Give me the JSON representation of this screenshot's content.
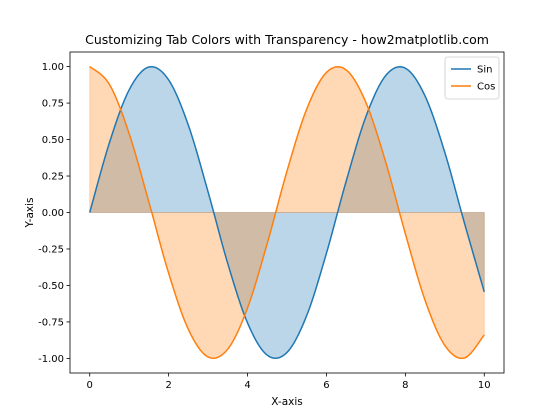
{
  "chart_data": {
    "type": "line",
    "title": "Customizing Tab Colors with Transparency - how2matplotlib.com",
    "xlabel": "X-axis",
    "ylabel": "Y-axis",
    "xlim": [
      -0.5,
      10.5
    ],
    "ylim": [
      -1.1,
      1.1
    ],
    "xticks": [
      0,
      2,
      4,
      6,
      8,
      10
    ],
    "xtick_labels": [
      "0",
      "2",
      "4",
      "6",
      "8",
      "10"
    ],
    "yticks": [
      -1.0,
      -0.75,
      -0.5,
      -0.25,
      0.0,
      0.25,
      0.5,
      0.75,
      1.0
    ],
    "ytick_labels": [
      "-1.00",
      "-0.75",
      "-0.50",
      "-0.25",
      "0.00",
      "0.25",
      "0.50",
      "0.75",
      "1.00"
    ],
    "grid": false,
    "legend_position": "top-right",
    "fill_to_zero": true,
    "fill_alpha": 0.3,
    "x": [
      0.0,
      0.5,
      1.0,
      1.5,
      2.0,
      2.5,
      3.0,
      3.5,
      4.0,
      4.5,
      5.0,
      5.5,
      6.0,
      6.5,
      7.0,
      7.5,
      8.0,
      8.5,
      9.0,
      9.5,
      10.0
    ],
    "series": [
      {
        "name": "Sin",
        "color": "#1f77b4",
        "values": [
          0.0,
          0.479,
          0.841,
          0.997,
          0.909,
          0.598,
          0.141,
          -0.351,
          -0.757,
          -0.978,
          -0.959,
          -0.706,
          -0.279,
          0.215,
          0.657,
          0.938,
          0.989,
          0.798,
          0.412,
          -0.075,
          -0.544
        ]
      },
      {
        "name": "Cos",
        "color": "#ff7f0e",
        "values": [
          1.0,
          0.878,
          0.54,
          0.071,
          -0.416,
          -0.801,
          -0.99,
          -0.936,
          -0.654,
          -0.211,
          0.284,
          0.709,
          0.96,
          0.977,
          0.754,
          0.347,
          -0.146,
          -0.602,
          -0.911,
          -0.997,
          -0.839
        ]
      }
    ]
  }
}
